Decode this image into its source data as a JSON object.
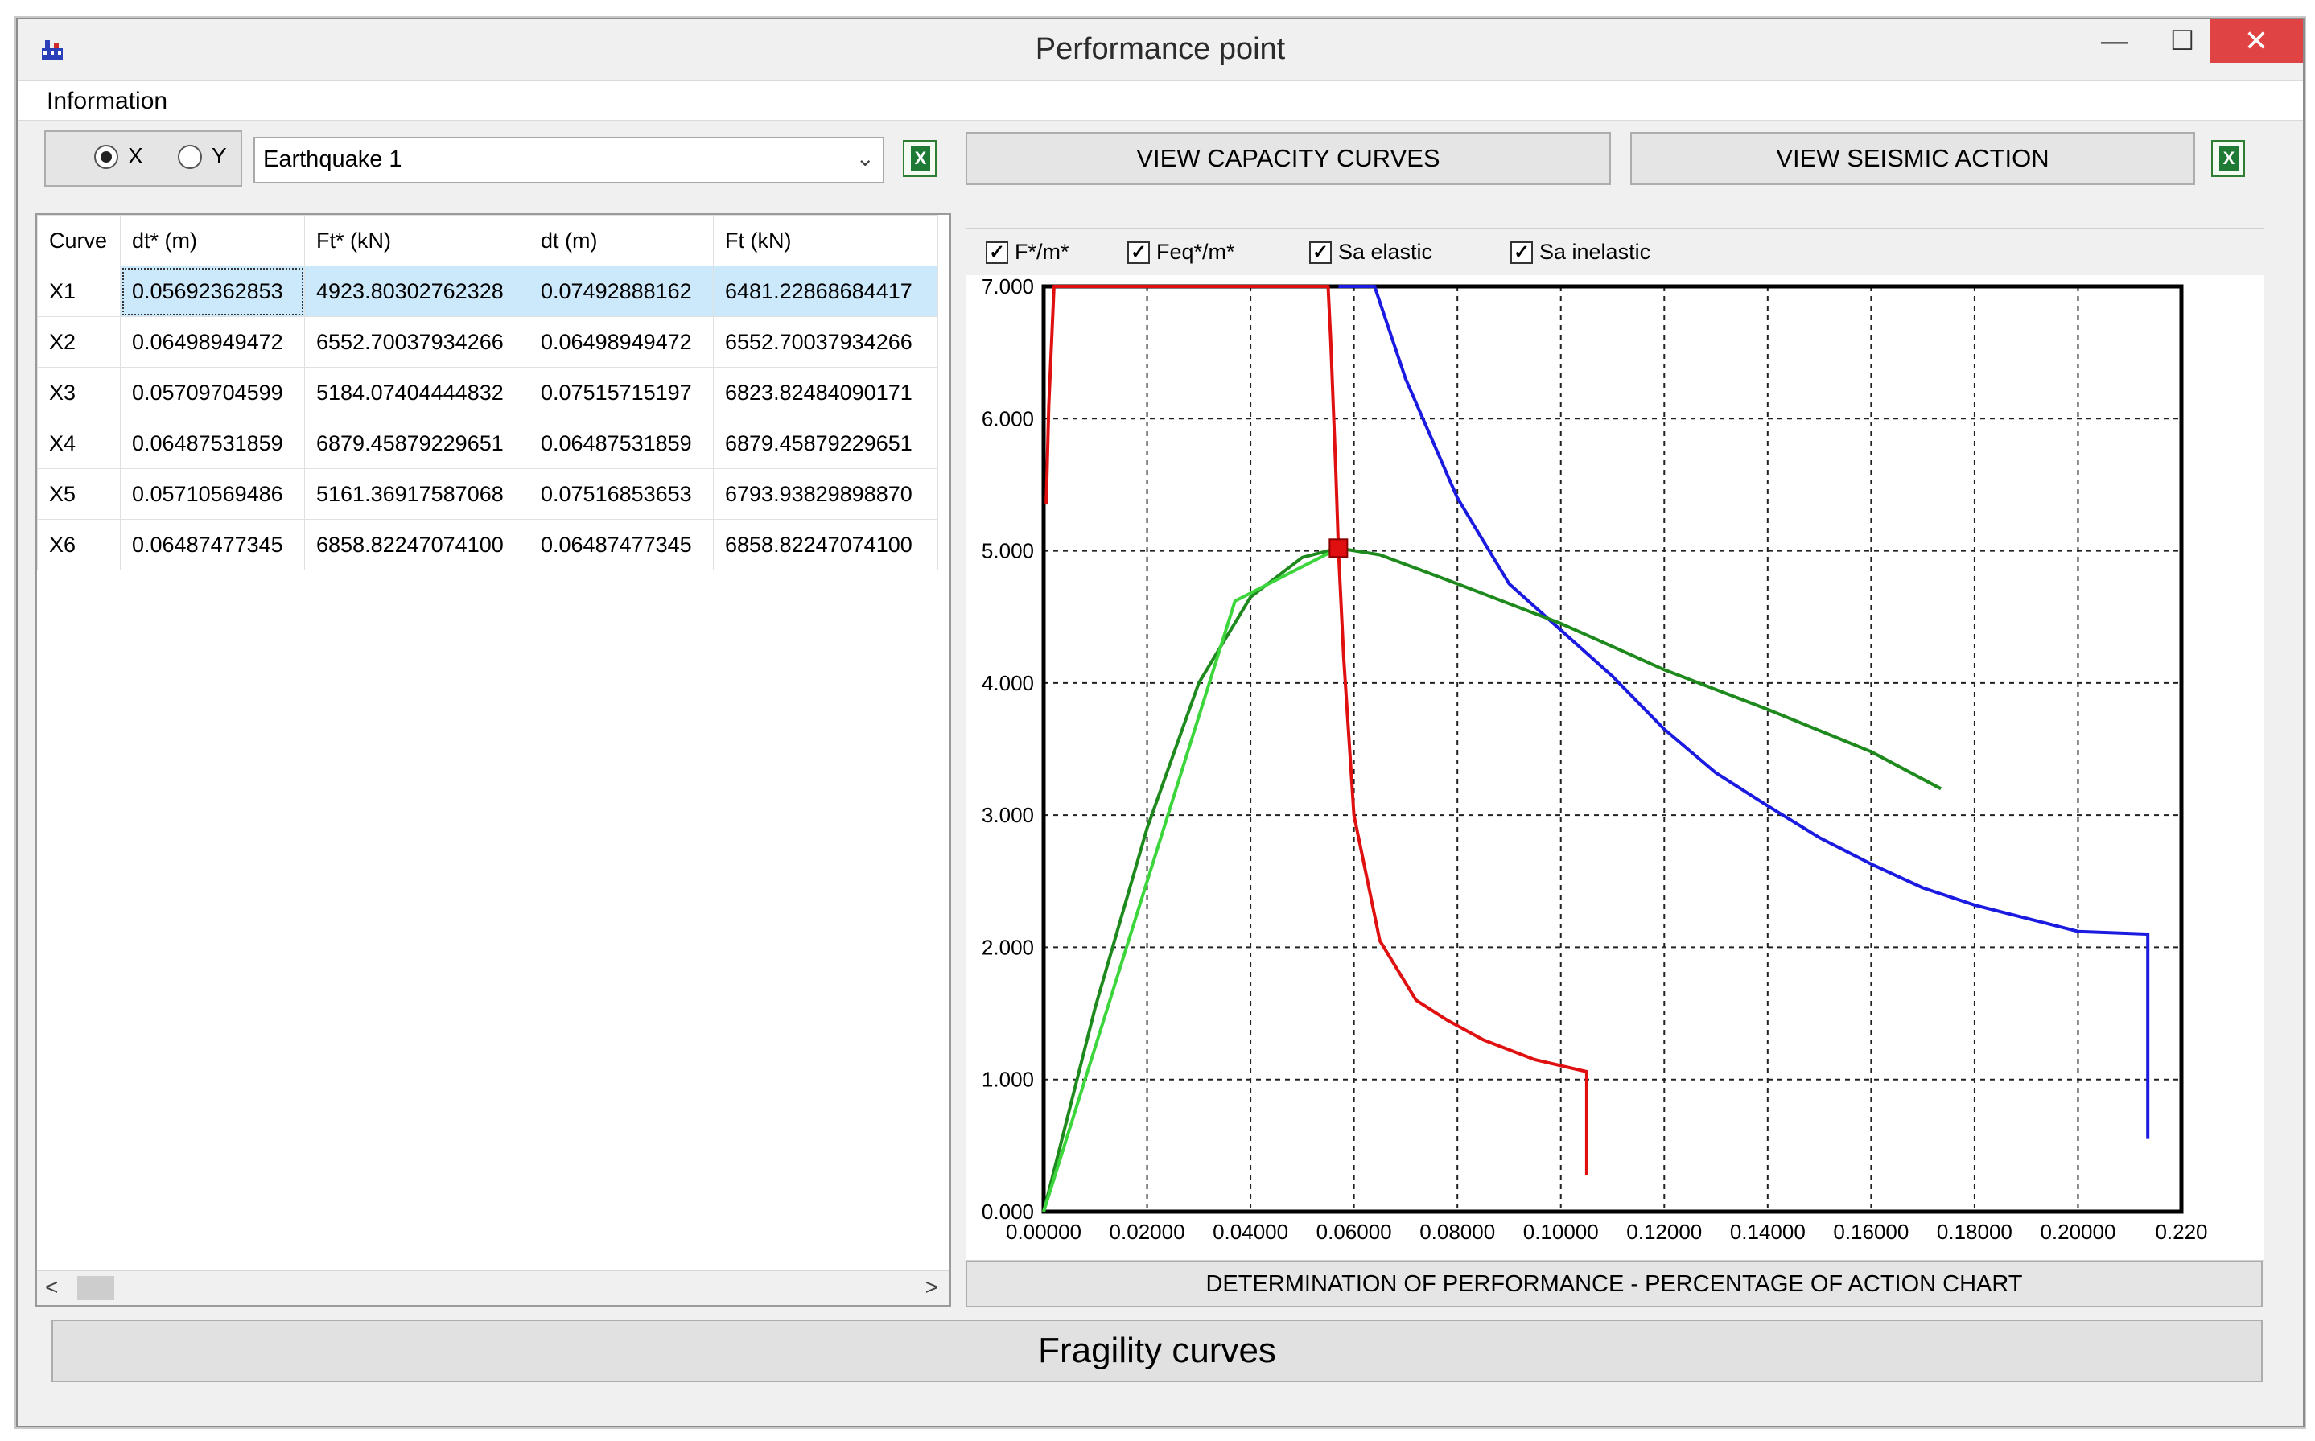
{
  "window": {
    "title": "Performance point"
  },
  "menu": {
    "items": [
      "Information"
    ]
  },
  "controls": {
    "axis_x": "X",
    "axis_y": "Y",
    "selected_axis": "X",
    "earthquake": "Earthquake 1",
    "view_capacity": "VIEW CAPACITY CURVES",
    "view_seismic": "VIEW SEISMIC ACTION"
  },
  "table": {
    "headers": [
      "Curve",
      "dt* (m)",
      "Ft* (kN)",
      "dt (m)",
      "Ft (kN)"
    ],
    "rows": [
      [
        "X1",
        "0.05692362853",
        "4923.80302762328",
        "0.07492888162",
        "6481.22868684417"
      ],
      [
        "X2",
        "0.06498949472",
        "6552.70037934266",
        "0.06498949472",
        "6552.70037934266"
      ],
      [
        "X3",
        "0.05709704599",
        "5184.07404444832",
        "0.07515715197",
        "6823.82484090171"
      ],
      [
        "X4",
        "0.06487531859",
        "6879.45879229651",
        "0.06487531859",
        "6879.45879229651"
      ],
      [
        "X5",
        "0.05710569486",
        "5161.36917587068",
        "0.07516853653",
        "6793.93829898870"
      ],
      [
        "X6",
        "0.06487477345",
        "6858.82247074100",
        "0.06487477345",
        "6858.82247074100"
      ]
    ]
  },
  "checks": [
    {
      "label": "F*/m*",
      "checked": true
    },
    {
      "label": "Feq*/m*",
      "checked": true
    },
    {
      "label": "Sa elastic",
      "checked": true
    },
    {
      "label": "Sa inelastic",
      "checked": true
    }
  ],
  "buttons": {
    "chart_footer": "DETERMINATION OF PERFORMANCE - PERCENTAGE OF ACTION CHART",
    "fragility": "Fragility curves"
  },
  "chart_data": {
    "type": "line",
    "xlim": [
      0,
      0.22
    ],
    "ylim": [
      0,
      7
    ],
    "x_ticks": [
      "0.00000",
      "0.02000",
      "0.04000",
      "0.06000",
      "0.08000",
      "0.10000",
      "0.12000",
      "0.14000",
      "0.16000",
      "0.18000",
      "0.20000",
      "0.220"
    ],
    "y_ticks": [
      "0.000",
      "1.000",
      "2.000",
      "3.000",
      "4.000",
      "5.000",
      "6.000",
      "7.000"
    ],
    "grid": true,
    "series": [
      {
        "color": "#e01010",
        "points": [
          [
            0.0005,
            5.35
          ],
          [
            0.001,
            6.1
          ],
          [
            0.002,
            7.0
          ],
          [
            0.055,
            7.0
          ],
          [
            0.0555,
            6.6
          ],
          [
            0.0565,
            5.6
          ],
          [
            0.057,
            5.0
          ],
          [
            0.058,
            4.2
          ],
          [
            0.06,
            3.0
          ],
          [
            0.065,
            2.05
          ],
          [
            0.072,
            1.6
          ],
          [
            0.078,
            1.45
          ],
          [
            0.085,
            1.3
          ],
          [
            0.095,
            1.15
          ],
          [
            0.105,
            1.06
          ],
          [
            0.105,
            0.28
          ]
        ]
      },
      {
        "color": "#1a1ae0",
        "points": [
          [
            0.057,
            7.0
          ],
          [
            0.064,
            7.0
          ],
          [
            0.07,
            6.3
          ],
          [
            0.08,
            5.4
          ],
          [
            0.09,
            4.75
          ],
          [
            0.1,
            4.4
          ],
          [
            0.11,
            4.05
          ],
          [
            0.12,
            3.65
          ],
          [
            0.13,
            3.32
          ],
          [
            0.14,
            3.07
          ],
          [
            0.15,
            2.83
          ],
          [
            0.16,
            2.63
          ],
          [
            0.17,
            2.45
          ],
          [
            0.18,
            2.32
          ],
          [
            0.19,
            2.22
          ],
          [
            0.2,
            2.12
          ],
          [
            0.2135,
            2.1
          ],
          [
            0.2135,
            0.55
          ]
        ]
      },
      {
        "color": "#1e8a1e",
        "points": [
          [
            0.0,
            0.0
          ],
          [
            0.01,
            1.55
          ],
          [
            0.02,
            2.9
          ],
          [
            0.03,
            4.0
          ],
          [
            0.04,
            4.65
          ],
          [
            0.05,
            4.95
          ],
          [
            0.057,
            5.02
          ],
          [
            0.065,
            4.97
          ],
          [
            0.08,
            4.75
          ],
          [
            0.1,
            4.45
          ],
          [
            0.12,
            4.1
          ],
          [
            0.14,
            3.8
          ],
          [
            0.16,
            3.48
          ],
          [
            0.1735,
            3.2
          ]
        ]
      },
      {
        "color": "#3cd63c",
        "points": [
          [
            0.0,
            0.0
          ],
          [
            0.037,
            4.62
          ],
          [
            0.042,
            4.72
          ],
          [
            0.057,
            5.02
          ]
        ]
      }
    ],
    "performance_point": {
      "x": 0.057,
      "y": 5.02
    }
  }
}
